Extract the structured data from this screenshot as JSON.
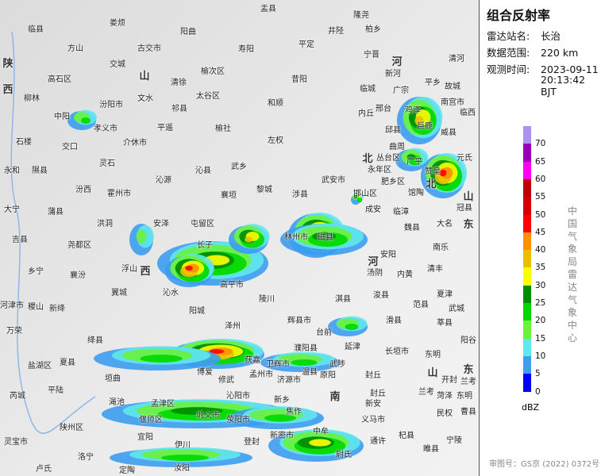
{
  "panel": {
    "title": "组合反射率",
    "station_label": "雷达站名:",
    "station": "长治",
    "range_label": "数据范围:",
    "range": "220 km",
    "time_label": "观测时间:",
    "date": "2023-09-11",
    "time": "20:13:42 BJT"
  },
  "legend": {
    "unit": "dBZ",
    "ticks": [
      "70",
      "65",
      "60",
      "55",
      "50",
      "45",
      "40",
      "35",
      "30",
      "25",
      "20",
      "15",
      "10",
      "5",
      "0"
    ],
    "colors": [
      "#ad91f0",
      "#9600b4",
      "#ff00f0",
      "#c00000",
      "#d60000",
      "#ff0000",
      "#ff9000",
      "#e7c000",
      "#ffff00",
      "#008c00",
      "#00d800",
      "#6af23c",
      "#60e8ec",
      "#419ded",
      "#0000f6"
    ],
    "source": "中国气象局雷达气象中心"
  },
  "footer": "审图号：GS京 (2022) 0372号",
  "map": {
    "provinces": [
      "陕",
      "西",
      "山",
      "西",
      "河",
      "北",
      "北",
      "山",
      "东",
      "河",
      "南",
      "山",
      "东"
    ],
    "labels": [
      "临县",
      "方山",
      "交城",
      "古交市",
      "阳曲",
      "盂县",
      "平定",
      "井陉",
      "寿阳",
      "榆次区",
      "昔阳",
      "清徐",
      "太谷区",
      "和顺",
      "文水",
      "祁县",
      "平遥",
      "榆社",
      "左权",
      "汾阳市",
      "孝义市",
      "介休市",
      "武乡",
      "沁县",
      "襄垣",
      "黎城",
      "屯留区",
      "沁源",
      "霍州市",
      "洪洞",
      "浮山",
      "尧都区",
      "安泽",
      "长子",
      "高平市",
      "陵川",
      "沁水",
      "阳城",
      "泽州",
      "辉县市",
      "林州市",
      "安阳",
      "邢台",
      "临城",
      "内丘",
      "巨鹿",
      "威县",
      "南宫市",
      "馆陶",
      "冠县",
      "大名",
      "魏县",
      "南乐",
      "清丰",
      "内黄",
      "汤阴",
      "淇县",
      "浚县",
      "滑县",
      "延津",
      "长垣市",
      "封丘",
      "原阳",
      "东明",
      "兰考",
      "民权",
      "杞县",
      "睢县",
      "宁陵",
      "通许",
      "尉氏",
      "中牟",
      "新密市",
      "登封",
      "伊川",
      "汝阳",
      "宜阳",
      "洛宁",
      "渑池",
      "陕州区",
      "灵宝市",
      "卢氏",
      "平陆",
      "芮城",
      "夏县",
      "垣曲",
      "绛县",
      "盐湖区",
      "万荣",
      "稷山",
      "新绛",
      "河津市",
      "翼城",
      "襄汾",
      "乡宁",
      "吉县",
      "蒲县",
      "大宁",
      "隰县",
      "汾西",
      "灵石",
      "交口",
      "石楼",
      "中阳",
      "柳林",
      "永和",
      "高石区",
      "娄烦",
      "涉县",
      "武安市",
      "磁县",
      "永年区",
      "丛台区",
      "邯山区",
      "肥乡区",
      "成安",
      "临漳",
      "广平",
      "邱县",
      "曲周",
      "鸡泽",
      "平乡",
      "广宗",
      "新河",
      "宁晋",
      "隆尧",
      "柏乡",
      "赞皇",
      "元氏",
      "临西",
      "清河",
      "故城",
      "武城",
      "夏津",
      "莘县",
      "阳谷",
      "范县",
      "台前",
      "濮阳县",
      "卫辉市",
      "获嘉",
      "修武",
      "博爱",
      "沁阳市",
      "孟州市",
      "济源市",
      "温县",
      "武陟",
      "焦作",
      "新乡",
      "荥阳市",
      "巩义市",
      "偃师区",
      "孟津区",
      "新安",
      "义马市",
      "封丘",
      "开封",
      "兰考",
      "菏泽",
      "东明",
      "曹县",
      "定陶"
    ]
  }
}
